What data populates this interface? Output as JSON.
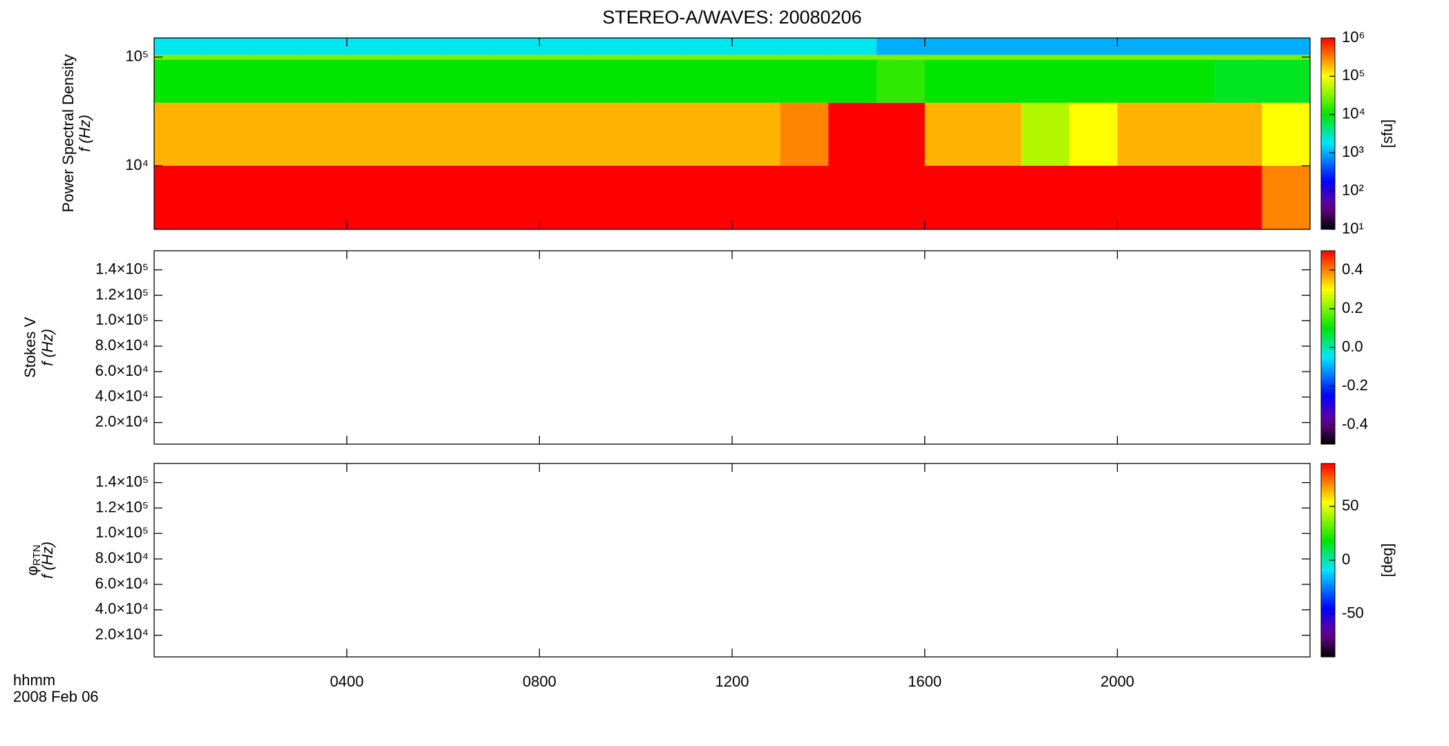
{
  "chart_data": [
    {
      "type": "heatmap",
      "title": "STEREO-A/WAVES: 20080206",
      "ylabel": "Power Spectral Density",
      "ylabel_unit": "f (Hz)",
      "ylog": true,
      "xlim": [
        0,
        24
      ],
      "ylim": [
        2600,
        150000
      ],
      "yticks": [
        {
          "value": 10000,
          "label": "10⁴"
        },
        {
          "value": 100000,
          "label": "10⁵"
        }
      ],
      "x_bins": [
        0,
        1,
        2,
        3,
        4,
        5,
        6,
        7,
        8,
        9,
        10,
        11,
        12,
        13,
        14,
        15,
        16,
        17,
        18,
        19,
        20,
        21,
        22,
        23,
        24
      ],
      "y_bins": [
        2600,
        10000,
        38000,
        95000,
        105000,
        150000
      ],
      "z": [
        [
          1000000,
          1000000,
          1000000,
          1000000,
          1000000,
          1000000,
          1000000,
          1000000,
          1000000,
          1000000,
          1000000,
          1000000,
          1000000,
          1000000,
          1000000,
          1000000,
          1000000,
          1000000,
          1000000,
          1000000,
          1000000,
          1000000,
          1000000,
          300000
        ],
        [
          200000,
          200000,
          200000,
          200000,
          200000,
          200000,
          200000,
          200000,
          200000,
          200000,
          200000,
          200000,
          200000,
          300000,
          1000000,
          1000000,
          200000,
          200000,
          50000,
          100000,
          200000,
          200000,
          200000,
          100000
        ],
        [
          10000,
          10000,
          10000,
          10000,
          10000,
          10000,
          10000,
          10000,
          10000,
          10000,
          10000,
          10000,
          10000,
          10000,
          10000,
          15000,
          10000,
          10000,
          10000,
          10000,
          10000,
          10000,
          8000,
          8000
        ],
        [
          30000,
          30000,
          30000,
          30000,
          30000,
          30000,
          30000,
          30000,
          30000,
          30000,
          30000,
          30000,
          30000,
          30000,
          30000,
          30000,
          30000,
          30000,
          30000,
          30000,
          30000,
          30000,
          30000,
          30000
        ],
        [
          2000,
          2000,
          2000,
          2000,
          2000,
          2000,
          2000,
          2000,
          2000,
          2000,
          2000,
          2000,
          2000,
          2000,
          2000,
          1000,
          1000,
          1000,
          1000,
          1000,
          1000,
          1000,
          1000,
          1000
        ]
      ],
      "colorbar": {
        "log": true,
        "lim": [
          10,
          1000000
        ],
        "label": "[sfu]",
        "ticks": [
          {
            "value": 10,
            "label": "10¹"
          },
          {
            "value": 100,
            "label": "10²"
          },
          {
            "value": 1000,
            "label": "10³"
          },
          {
            "value": 10000,
            "label": "10⁴"
          },
          {
            "value": 100000,
            "label": "10⁵"
          },
          {
            "value": 1000000,
            "label": "10⁶"
          }
        ]
      }
    },
    {
      "type": "heatmap",
      "ylabel": "Stokes V",
      "ylabel_unit": "f (Hz)",
      "ylog": false,
      "xlim": [
        0,
        24
      ],
      "ylim": [
        3000,
        155000
      ],
      "yticks": [
        {
          "value": 20000,
          "label": "2.0×10⁴"
        },
        {
          "value": 40000,
          "label": "4.0×10⁴"
        },
        {
          "value": 60000,
          "label": "6.0×10⁴"
        },
        {
          "value": 80000,
          "label": "8.0×10⁴"
        },
        {
          "value": 100000,
          "label": "1.0×10⁵"
        },
        {
          "value": 120000,
          "label": "1.2×10⁵"
        },
        {
          "value": 140000,
          "label": "1.4×10⁵"
        }
      ],
      "colorbar": {
        "log": false,
        "lim": [
          -0.5,
          0.5
        ],
        "ticks": [
          -0.4,
          -0.2,
          {
            "value": 0,
            "label": "0.0"
          },
          0.2,
          0.4
        ]
      }
    },
    {
      "type": "heatmap",
      "ylabel_symbol": "φ",
      "ylabel_subscript": "RTN",
      "ylabel_unit": "f (Hz)",
      "ylog": false,
      "xlim": [
        0,
        24
      ],
      "ylim": [
        3000,
        155000
      ],
      "yticks": [
        {
          "value": 20000,
          "label": "2.0×10⁴"
        },
        {
          "value": 40000,
          "label": "4.0×10⁴"
        },
        {
          "value": 60000,
          "label": "6.0×10⁴"
        },
        {
          "value": 80000,
          "label": "8.0×10⁴"
        },
        {
          "value": 100000,
          "label": "1.0×10⁵"
        },
        {
          "value": 120000,
          "label": "1.2×10⁵"
        },
        {
          "value": 140000,
          "label": "1.4×10⁵"
        }
      ],
      "xlabel": "hhmm",
      "date_label": "2008 Feb 06",
      "xticks": [
        {
          "value": 4,
          "label": "0400"
        },
        {
          "value": 8,
          "label": "0800"
        },
        {
          "value": 12,
          "label": "1200"
        },
        {
          "value": 16,
          "label": "1600"
        },
        {
          "value": 20,
          "label": "2000"
        }
      ],
      "colorbar": {
        "log": false,
        "lim": [
          -90,
          90
        ],
        "label": "[deg]",
        "ticks": [
          -50,
          0,
          50
        ]
      }
    }
  ]
}
